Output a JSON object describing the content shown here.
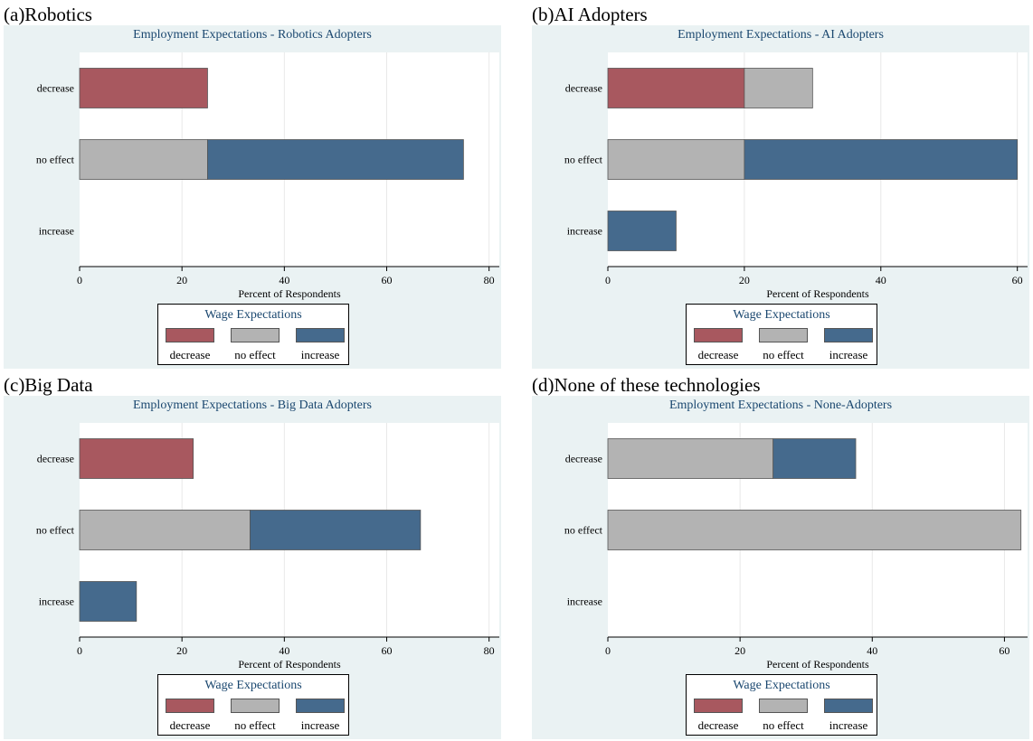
{
  "colors": {
    "decrease": "#a8585f",
    "no_effect": "#b3b3b3",
    "increase": "#456a8d",
    "title": "#1a476f",
    "background": "#eaf2f3"
  },
  "chart_data": [
    {
      "label": "(a)Robotics",
      "type": "bar",
      "orientation": "horizontal",
      "stacked": true,
      "title": "Employment Expectations - Robotics Adopters",
      "xlabel": "Percent of Respondents",
      "categories": [
        "decrease",
        "no effect",
        "increase"
      ],
      "series": [
        {
          "name": "decrease",
          "values": [
            25,
            0,
            0
          ]
        },
        {
          "name": "no effect",
          "values": [
            0,
            25,
            0
          ]
        },
        {
          "name": "increase",
          "values": [
            0,
            50,
            0
          ]
        }
      ],
      "xlim": [
        0,
        82
      ],
      "ticks": [
        0,
        20,
        40,
        60,
        80
      ],
      "grid": true,
      "legend": {
        "title": "Wage Expectations",
        "items": [
          "decrease",
          "no effect",
          "increase"
        ],
        "placement": "bottom"
      }
    },
    {
      "label": "(b)AI Adopters",
      "type": "bar",
      "orientation": "horizontal",
      "stacked": true,
      "title": "Employment Expectations - AI Adopters",
      "xlabel": "Percent of Respondents",
      "categories": [
        "decrease",
        "no effect",
        "increase"
      ],
      "series": [
        {
          "name": "decrease",
          "values": [
            20,
            0,
            0
          ]
        },
        {
          "name": "no effect",
          "values": [
            10,
            20,
            0
          ]
        },
        {
          "name": "increase",
          "values": [
            0,
            40,
            10
          ]
        }
      ],
      "xlim": [
        0,
        61.5
      ],
      "ticks": [
        0,
        20,
        40,
        60
      ],
      "grid": true,
      "legend": {
        "title": "Wage Expectations",
        "items": [
          "decrease",
          "no effect",
          "increase"
        ],
        "placement": "bottom"
      }
    },
    {
      "label": "(c)Big Data",
      "type": "bar",
      "orientation": "horizontal",
      "stacked": true,
      "title": "Employment Expectations - Big Data Adopters",
      "xlabel": "Percent of Respondents",
      "categories": [
        "decrease",
        "no effect",
        "increase"
      ],
      "series": [
        {
          "name": "decrease",
          "values": [
            22.2,
            0,
            0
          ]
        },
        {
          "name": "no effect",
          "values": [
            0,
            33.3,
            0
          ]
        },
        {
          "name": "increase",
          "values": [
            0,
            33.3,
            11.1
          ]
        }
      ],
      "xlim": [
        0,
        82
      ],
      "ticks": [
        0,
        20,
        40,
        60,
        80
      ],
      "grid": true,
      "legend": {
        "title": "Wage Expectations",
        "items": [
          "decrease",
          "no effect",
          "increase"
        ],
        "placement": "bottom"
      }
    },
    {
      "label": "(d)None of these technologies",
      "type": "bar",
      "orientation": "horizontal",
      "stacked": true,
      "title": "Employment Expectations - None-Adopters",
      "xlabel": "Percent of Respondents",
      "categories": [
        "decrease",
        "no effect",
        "increase"
      ],
      "series": [
        {
          "name": "decrease",
          "values": [
            0,
            0,
            0
          ]
        },
        {
          "name": "no effect",
          "values": [
            25,
            62.5,
            0
          ]
        },
        {
          "name": "increase",
          "values": [
            12.5,
            0,
            0
          ]
        }
      ],
      "xlim": [
        0,
        63.5
      ],
      "ticks": [
        0,
        20,
        40,
        60
      ],
      "grid": true,
      "legend": {
        "title": "Wage Expectations",
        "items": [
          "decrease",
          "no effect",
          "increase"
        ],
        "placement": "bottom"
      }
    }
  ]
}
